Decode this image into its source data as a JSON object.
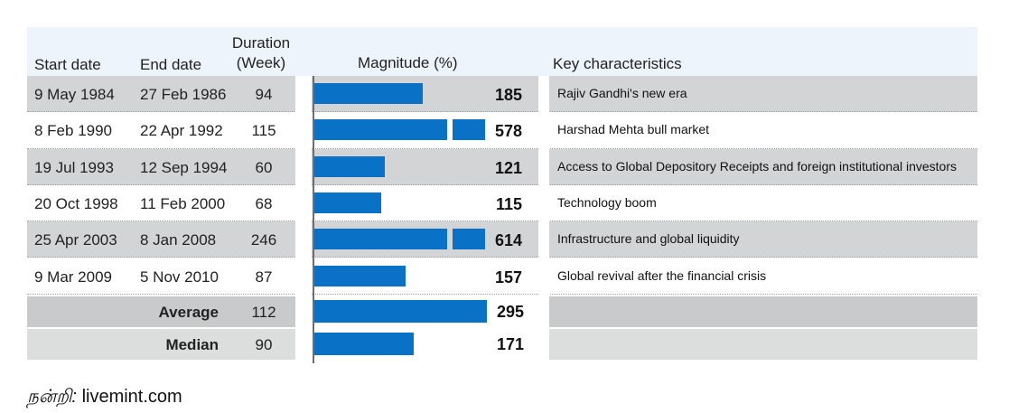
{
  "chart_data": {
    "type": "table",
    "columns": {
      "start": "Start date",
      "end": "End date",
      "duration_line1": "Duration",
      "duration_line2": "(Week)",
      "magnitude": "Magnitude (%)",
      "key": "Key characteristics"
    },
    "rows": [
      {
        "start": "9 May 1984",
        "end": "27 Feb 1986",
        "duration": "94",
        "magnitude": 185,
        "key": "Rajiv Gandhi's new era"
      },
      {
        "start": "8 Feb 1990",
        "end": "22 Apr 1992",
        "duration": "115",
        "magnitude": 578,
        "key": "Harshad Mehta bull market"
      },
      {
        "start": "19 Jul 1993",
        "end": "12 Sep 1994",
        "duration": "60",
        "magnitude": 121,
        "key": "Access to Global Depository Receipts and foreign institutional investors"
      },
      {
        "start": "20 Oct 1998",
        "end": "11 Feb 2000",
        "duration": "68",
        "magnitude": 115,
        "key": "Technology boom"
      },
      {
        "start": "25 Apr 2003",
        "end": "8 Jan 2008",
        "duration": "246",
        "magnitude": 614,
        "key": "Infrastructure and global liquidity"
      },
      {
        "start": "9 Mar 2009",
        "end": "5 Nov 2010",
        "duration": "87",
        "magnitude": 157,
        "key": "Global revival after the financial crisis"
      }
    ],
    "summary": [
      {
        "label": "Average",
        "duration": "112",
        "magnitude": 295
      },
      {
        "label": "Median",
        "duration": "90",
        "magnitude": 171
      }
    ],
    "bar_scale_max": 300,
    "break_threshold": 300
  },
  "colors": {
    "bar": "#0a72c6",
    "band_dark": "#d3d4d5",
    "band_light": "#ffffff",
    "header_bg": "#eef4fb",
    "summary_dark": "#c9cacb",
    "summary_light": "#dcdddd"
  },
  "credit": {
    "tamil": "நன்றி:",
    "source": "livemint.com"
  }
}
